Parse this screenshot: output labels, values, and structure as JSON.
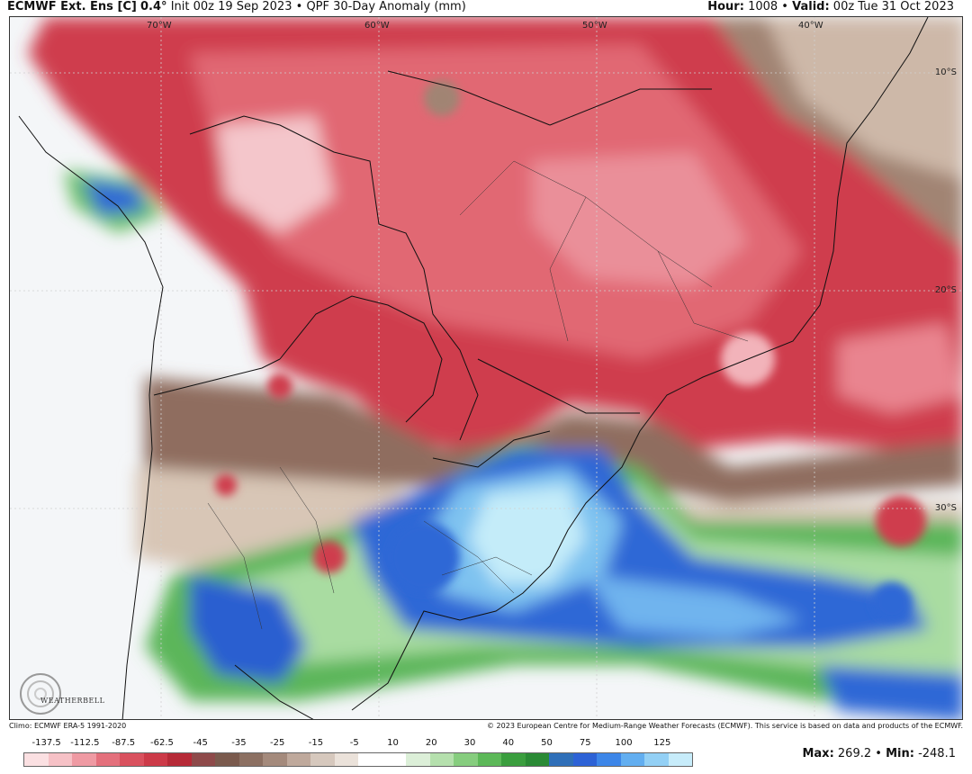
{
  "header": {
    "model": "ECMWF Ext. Ens [C]",
    "resolution": "0.4°",
    "init": "Init 00z 19 Sep 2023",
    "bullet": "•",
    "product": "QPF 30-Day Anomaly (mm)",
    "hour_label": "Hour:",
    "hour_value": "1008",
    "valid_label": "Valid:",
    "valid_value": "00z Tue 31 Oct 2023"
  },
  "map": {
    "lon_labels": [
      "70°W",
      "60°W",
      "50°W",
      "40°W"
    ],
    "lat_labels": [
      "10°S",
      "20°S",
      "30°S"
    ],
    "logo_text": "WEATHERBELL"
  },
  "credits": {
    "climo": "Climo: ECMWF ERA-5 1991-2020",
    "copyright": "© 2023 European Centre for Medium-Range Weather Forecasts (ECMWF). This service is based on data and products of the ECMWF."
  },
  "colorbar": {
    "labels": [
      "-137.5",
      "-112.5",
      "-87.5",
      "-62.5",
      "-45",
      "-35",
      "-25",
      "-15",
      "-5",
      "10",
      "20",
      "30",
      "40",
      "50",
      "75",
      "100",
      "125"
    ],
    "colors": [
      "#fbe0e2",
      "#f6c1c6",
      "#ef9aa3",
      "#e4707c",
      "#d9515e",
      "#cc3a48",
      "#b62a37",
      "#8e4a4a",
      "#7a5a4d",
      "#8c7062",
      "#a48a7c",
      "#bfa99c",
      "#d6c8bd",
      "#ebe2da",
      "#ffffff",
      "#ffffff",
      "#dcefd8",
      "#b5e0ad",
      "#86cd7e",
      "#5cb858",
      "#3a9e3e",
      "#2a8a35",
      "#2f6fb8",
      "#2d62d6",
      "#3d86e8",
      "#62aef0",
      "#93d0f5",
      "#c7ecfa"
    ]
  },
  "stats": {
    "max_label": "Max:",
    "max_value": "269.2",
    "min_label": "Min:",
    "min_value": "-248.1"
  },
  "colors": {
    "dry_strong": "#c8303f",
    "dry_medium": "#df5c68",
    "dry_light": "#f2b3ba",
    "dry_brown": "#8a6a5c",
    "dry_tan": "#cdb8a8",
    "wet_green": "#4fb052",
    "wet_light_green": "#a9dca1",
    "wet_blue": "#2e66d6",
    "wet_light_blue": "#7ec0f0",
    "wet_pale_blue": "#bfeaf8"
  }
}
